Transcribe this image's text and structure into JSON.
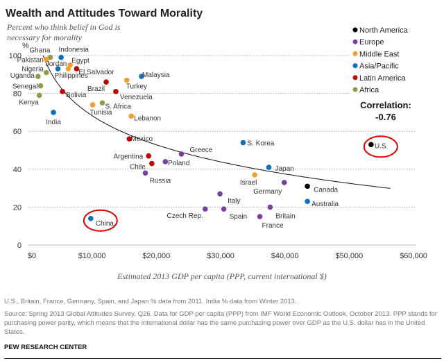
{
  "chart_data": {
    "type": "scatter",
    "title": "Wealth and Attitudes Toward Morality",
    "ylabel": "Percent who think belief in God is necessary for morality",
    "y_unit": "%",
    "xlabel": "Estimated 2013 GDP per capita (PPP, current international $)",
    "xlim": [
      0,
      60000
    ],
    "ylim": [
      0,
      100
    ],
    "x_ticks": [
      "$0",
      "$10,000",
      "$20,000",
      "$30,000",
      "$40,000",
      "$50,000",
      "$60,000"
    ],
    "y_ticks": [
      "0",
      "20",
      "40",
      "60",
      "80",
      "100"
    ],
    "grid": "horizontal dotted",
    "legend_position": "top-right",
    "regions": [
      {
        "name": "North America",
        "color": "#000000"
      },
      {
        "name": "Europe",
        "color": "#7b3fa0"
      },
      {
        "name": "Middle East",
        "color": "#f0a030"
      },
      {
        "name": "Asia/Pacific",
        "color": "#0a70c0"
      },
      {
        "name": "Latin America",
        "color": "#c00000"
      },
      {
        "name": "Africa",
        "color": "#8f9c4a"
      }
    ],
    "points": [
      {
        "country": "Ghana",
        "region": "Africa",
        "x": 3500,
        "y": 99
      },
      {
        "country": "Indonesia",
        "region": "Asia/Pacific",
        "x": 5200,
        "y": 99
      },
      {
        "country": "Pakistan",
        "region": "Middle East",
        "x": 2900,
        "y": 98
      },
      {
        "country": "Jordan",
        "region": "Middle East",
        "x": 6300,
        "y": 93
      },
      {
        "country": "Egypt",
        "region": "Middle East",
        "x": 6600,
        "y": 95
      },
      {
        "country": "Nigeria",
        "region": "Africa",
        "x": 2900,
        "y": 91
      },
      {
        "country": "Philippines",
        "region": "Asia/Pacific",
        "x": 4700,
        "y": 93
      },
      {
        "country": "El Salvador",
        "region": "Latin America",
        "x": 7600,
        "y": 93
      },
      {
        "country": "Uganda",
        "region": "Africa",
        "x": 1600,
        "y": 89
      },
      {
        "country": "Senegal",
        "region": "Africa",
        "x": 2000,
        "y": 84
      },
      {
        "country": "Kenya",
        "region": "Africa",
        "x": 1800,
        "y": 79
      },
      {
        "country": "Bolivia",
        "region": "Latin America",
        "x": 5400,
        "y": 81
      },
      {
        "country": "India",
        "region": "Asia/Pacific",
        "x": 4000,
        "y": 70
      },
      {
        "country": "Tunisia",
        "region": "Middle East",
        "x": 10100,
        "y": 74
      },
      {
        "country": "S. Africa",
        "region": "Africa",
        "x": 11600,
        "y": 75
      },
      {
        "country": "Brazil",
        "region": "Latin America",
        "x": 12200,
        "y": 86
      },
      {
        "country": "Venezuela",
        "region": "Latin America",
        "x": 13700,
        "y": 81
      },
      {
        "country": "Turkey",
        "region": "Middle East",
        "x": 15400,
        "y": 87
      },
      {
        "country": "Malaysia",
        "region": "Asia/Pacific",
        "x": 17700,
        "y": 89
      },
      {
        "country": "Lebanon",
        "region": "Middle East",
        "x": 16100,
        "y": 68
      },
      {
        "country": "Mexico",
        "region": "Latin America",
        "x": 15800,
        "y": 56
      },
      {
        "country": "Argentina",
        "region": "Latin America",
        "x": 18800,
        "y": 47
      },
      {
        "country": "Chile",
        "region": "Latin America",
        "x": 19300,
        "y": 43
      },
      {
        "country": "Poland",
        "region": "Europe",
        "x": 21400,
        "y": 44
      },
      {
        "country": "Greece",
        "region": "Europe",
        "x": 23900,
        "y": 48
      },
      {
        "country": "Russia",
        "region": "Europe",
        "x": 18300,
        "y": 38
      },
      {
        "country": "S. Korea",
        "region": "Asia/Pacific",
        "x": 33500,
        "y": 54
      },
      {
        "country": "Japan",
        "region": "Asia/Pacific",
        "x": 37500,
        "y": 41
      },
      {
        "country": "Israel",
        "region": "Middle East",
        "x": 35300,
        "y": 37
      },
      {
        "country": "Germany",
        "region": "Europe",
        "x": 39900,
        "y": 33
      },
      {
        "country": "Italy",
        "region": "Europe",
        "x": 29900,
        "y": 27
      },
      {
        "country": "Czech Rep.",
        "region": "Europe",
        "x": 27600,
        "y": 19
      },
      {
        "country": "Spain",
        "region": "Europe",
        "x": 30500,
        "y": 19
      },
      {
        "country": "Britain",
        "region": "Europe",
        "x": 37700,
        "y": 20
      },
      {
        "country": "France",
        "region": "Europe",
        "x": 36100,
        "y": 15
      },
      {
        "country": "China",
        "region": "Asia/Pacific",
        "x": 9800,
        "y": 14,
        "highlighted": true
      },
      {
        "country": "U.S.",
        "region": "North America",
        "x": 53400,
        "y": 53,
        "highlighted": true
      },
      {
        "country": "Canada",
        "region": "North America",
        "x": 43500,
        "y": 31
      },
      {
        "country": "Australia",
        "region": "Asia/Pacific",
        "x": 43500,
        "y": 23
      }
    ],
    "trendline": "logarithmic",
    "annotation": {
      "label": "Correlation:",
      "value": "-0.76"
    },
    "highlight_color": "#e00000"
  },
  "notes": {
    "data_years": "U.S., Britain, France, Germany, Spain, and Japan % data from 2011. India % data from Winter 2013.",
    "source": "Source: Spring 2013 Global Attitudes Survey, Q26.  Data for GDP per capita (PPP) from IMF World Economic Outlook, October 2013. PPP stands for purchasing power parity, which means that the international dollar has the same purchasing power over GDP as the U.S. dollar has in the United States."
  },
  "brand": "PEW RESEARCH CENTER"
}
